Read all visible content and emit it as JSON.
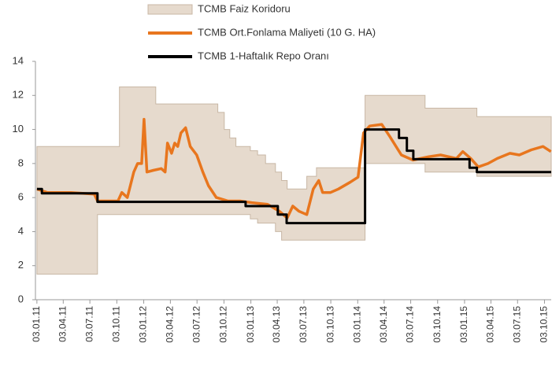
{
  "chart_data": {
    "type": "line",
    "xlim": [
      "2010-12-29",
      "2015-10-26"
    ],
    "ylim": [
      0,
      14
    ],
    "yticks": [
      0,
      2,
      4,
      6,
      8,
      10,
      12,
      14
    ],
    "xticks": [
      {
        "value": "2011-01-03",
        "label": "03.01.11"
      },
      {
        "value": "2011-04-03",
        "label": "03.04.11"
      },
      {
        "value": "2011-07-03",
        "label": "03.07.11"
      },
      {
        "value": "2011-10-03",
        "label": "03.10.11"
      },
      {
        "value": "2012-01-03",
        "label": "03.01.12"
      },
      {
        "value": "2012-04-03",
        "label": "03.04.12"
      },
      {
        "value": "2012-07-03",
        "label": "03.07.12"
      },
      {
        "value": "2012-10-03",
        "label": "03.10.12"
      },
      {
        "value": "2013-01-03",
        "label": "03.01.13"
      },
      {
        "value": "2013-04-03",
        "label": "03.04.13"
      },
      {
        "value": "2013-07-03",
        "label": "03.07.13"
      },
      {
        "value": "2013-10-03",
        "label": "03.10.13"
      },
      {
        "value": "2014-01-03",
        "label": "03.01.14"
      },
      {
        "value": "2014-04-03",
        "label": "03.04.14"
      },
      {
        "value": "2014-07-03",
        "label": "03.07.14"
      },
      {
        "value": "2014-10-03",
        "label": "03.10.14"
      },
      {
        "value": "2015-01-03",
        "label": "03.01.15"
      },
      {
        "value": "2015-04-03",
        "label": "03.04.15"
      },
      {
        "value": "2015-07-03",
        "label": "03.07.15"
      },
      {
        "value": "2015-10-03",
        "label": "03.10.15"
      }
    ],
    "series": [
      {
        "name": "TCMB Faiz Koridoru",
        "type": "band",
        "step": true,
        "color": "#e6dacd",
        "edge": "#c8b7a5",
        "x": [
          "2011-01-03",
          "2011-07-29",
          "2011-10-12",
          "2012-02-13",
          "2012-09-12",
          "2012-10-04",
          "2012-10-23",
          "2012-11-13",
          "2013-01-01",
          "2013-01-26",
          "2013-02-22",
          "2013-03-28",
          "2013-04-18",
          "2013-05-07",
          "2013-07-13",
          "2013-08-15",
          "2014-01-28",
          "2014-08-21",
          "2015-02-14",
          "2015-10-26"
        ],
        "upper": [
          9,
          9,
          12.5,
          11.5,
          11,
          10,
          9.5,
          9,
          8.75,
          8.5,
          8,
          7.5,
          7,
          6.5,
          7.25,
          7.75,
          12,
          11.25,
          10.75,
          10.75
        ],
        "lower": [
          1.5,
          5,
          5,
          5,
          5,
          5,
          5,
          5,
          4.75,
          4.5,
          4.5,
          4,
          3.5,
          3.5,
          3.5,
          3.5,
          8,
          7.5,
          7.25,
          7.25
        ]
      },
      {
        "name": "TCMB Ort.Fonlama Maliyeti (10 G. HA)",
        "type": "line",
        "step": false,
        "color": "#e8761e",
        "x": [
          "2011-01-03",
          "2011-02-07",
          "2011-04-29",
          "2011-07-18",
          "2011-07-29",
          "2011-10-07",
          "2011-10-20",
          "2011-11-08",
          "2011-11-30",
          "2011-12-13",
          "2011-12-27",
          "2012-01-04",
          "2012-01-14",
          "2012-02-05",
          "2012-03-03",
          "2012-03-16",
          "2012-03-24",
          "2012-04-07",
          "2012-04-18",
          "2012-04-28",
          "2012-05-09",
          "2012-05-25",
          "2012-06-10",
          "2012-07-02",
          "2012-07-23",
          "2012-08-11",
          "2012-09-07",
          "2012-10-17",
          "2012-11-27",
          "2013-01-06",
          "2013-03-01",
          "2013-04-10",
          "2013-05-07",
          "2013-05-26",
          "2013-06-16",
          "2013-07-13",
          "2013-08-04",
          "2013-08-23",
          "2013-09-05",
          "2013-10-02",
          "2013-10-29",
          "2013-12-08",
          "2014-01-04",
          "2014-01-23",
          "2014-02-13",
          "2014-03-26",
          "2014-04-22",
          "2014-06-01",
          "2014-07-11",
          "2014-09-03",
          "2014-10-13",
          "2014-12-06",
          "2014-12-28",
          "2015-01-24",
          "2015-02-19",
          "2015-03-24",
          "2015-04-25",
          "2015-06-07",
          "2015-07-09",
          "2015-08-19",
          "2015-09-28",
          "2015-10-25"
        ],
        "values": [
          6.5,
          6.3,
          6.3,
          6.2,
          5.8,
          5.8,
          6.3,
          6.0,
          7.5,
          8.0,
          8.0,
          10.6,
          7.5,
          7.6,
          7.7,
          7.5,
          9.2,
          8.6,
          9.2,
          9.0,
          9.8,
          10.1,
          9.0,
          8.5,
          7.5,
          6.7,
          6.0,
          5.8,
          5.8,
          5.7,
          5.6,
          5.2,
          4.8,
          5.5,
          5.2,
          5.0,
          6.5,
          7.0,
          6.3,
          6.3,
          6.5,
          6.9,
          7.2,
          9.8,
          10.2,
          10.3,
          9.6,
          8.5,
          8.2,
          8.4,
          8.5,
          8.3,
          8.7,
          8.3,
          7.8,
          8.0,
          8.3,
          8.6,
          8.5,
          8.8,
          9.0,
          8.7
        ]
      },
      {
        "name": "TCMB 1-Haftalık Repo Oranı",
        "type": "line",
        "step": true,
        "color": "#000000",
        "x": [
          "2011-01-03",
          "2011-01-20",
          "2011-07-29",
          "2012-12-16",
          "2013-04-05",
          "2013-05-05",
          "2014-01-28",
          "2014-05-24",
          "2014-06-20",
          "2014-07-12",
          "2015-01-20",
          "2015-02-14",
          "2015-10-26"
        ],
        "values": [
          6.5,
          6.25,
          5.75,
          5.5,
          5,
          4.5,
          10,
          9.5,
          8.75,
          8.25,
          7.75,
          7.5,
          7.5
        ]
      }
    ]
  }
}
